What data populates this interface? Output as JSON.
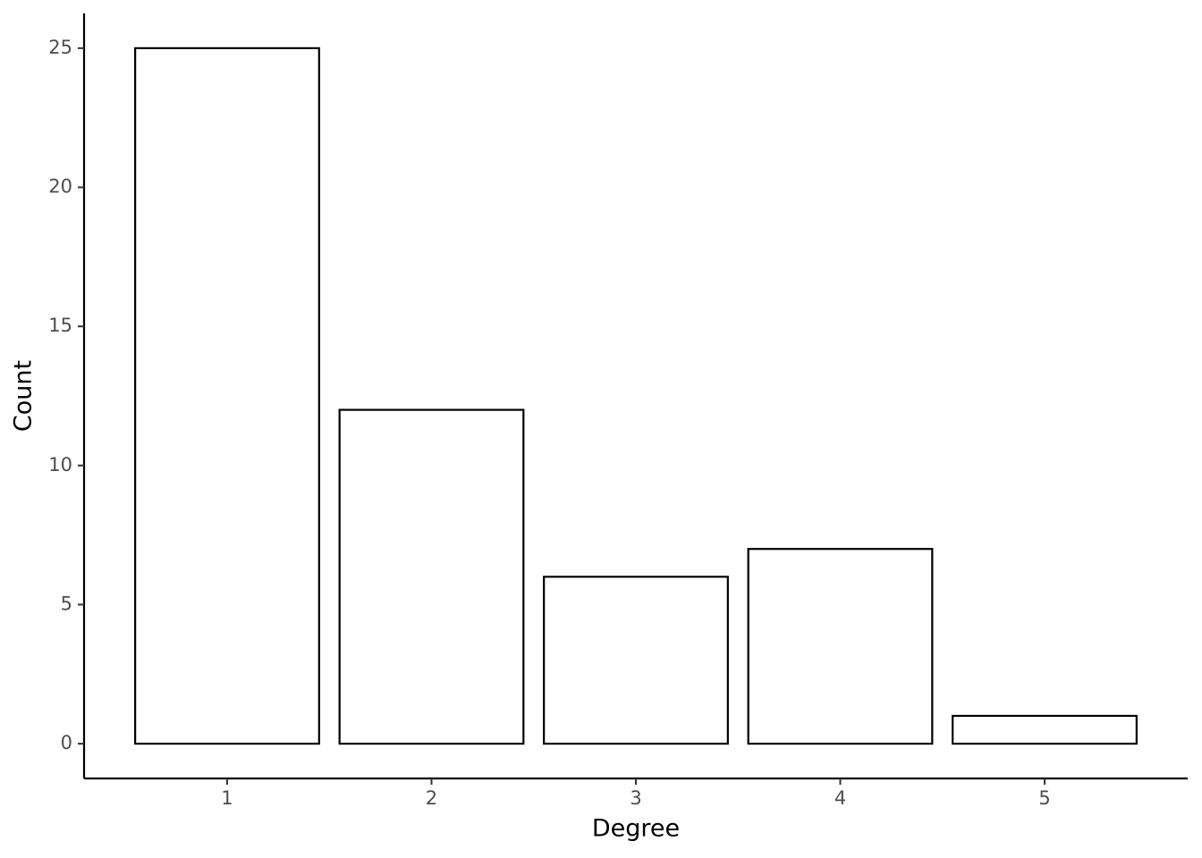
{
  "chart_data": {
    "type": "bar",
    "x_label": "Degree",
    "y_label": "Count",
    "x": [
      1,
      2,
      3,
      4,
      5
    ],
    "values": [
      25,
      12,
      6,
      7,
      1
    ],
    "color": "#000000",
    "fill": "#ffffff",
    "xlim": [
      0.3,
      5.7
    ],
    "xticks": [
      1,
      2,
      3,
      4,
      5
    ],
    "ylim": [
      -1.25,
      26.25
    ],
    "yticks": [
      0,
      5,
      10,
      15,
      20,
      25
    ],
    "grid": false
  }
}
